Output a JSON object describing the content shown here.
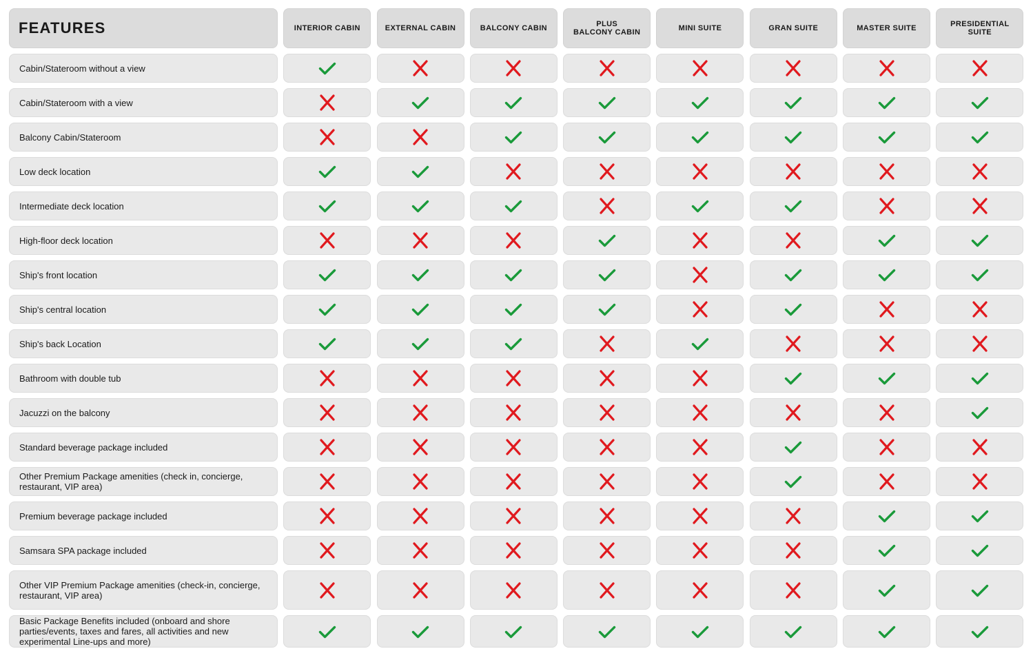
{
  "colors": {
    "check": "#1a9a3a",
    "cross": "#e0191e"
  },
  "header": {
    "features_label": "FEATURES",
    "columns": [
      "INTERIOR CABIN",
      "EXTERNAL CABIN",
      "BALCONY CABIN",
      "PLUS\nBALCONY CABIN",
      "MINI SUITE",
      "GRAN SUITE",
      "MASTER SUITE",
      "PRESIDENTIAL\nSUITE"
    ]
  },
  "rows": [
    {
      "feature": "Cabin/Stateroom without a view",
      "values": [
        true,
        false,
        false,
        false,
        false,
        false,
        false,
        false
      ]
    },
    {
      "feature": "Cabin/Stateroom with a view",
      "values": [
        false,
        true,
        true,
        true,
        true,
        true,
        true,
        true
      ]
    },
    {
      "feature": "Balcony Cabin/Stateroom",
      "values": [
        false,
        false,
        true,
        true,
        true,
        true,
        true,
        true
      ]
    },
    {
      "feature": "Low deck location",
      "values": [
        true,
        true,
        false,
        false,
        false,
        false,
        false,
        false
      ]
    },
    {
      "feature": "Intermediate deck location",
      "values": [
        true,
        true,
        true,
        false,
        true,
        true,
        false,
        false
      ]
    },
    {
      "feature": "High-floor deck location",
      "values": [
        false,
        false,
        false,
        true,
        false,
        false,
        true,
        true
      ]
    },
    {
      "feature": "Ship's front location",
      "values": [
        true,
        true,
        true,
        true,
        false,
        true,
        true,
        true
      ]
    },
    {
      "feature": "Ship's central location",
      "values": [
        true,
        true,
        true,
        true,
        false,
        true,
        false,
        false
      ]
    },
    {
      "feature": "Ship's back Location",
      "values": [
        true,
        true,
        true,
        false,
        true,
        false,
        false,
        false
      ]
    },
    {
      "feature": "Bathroom with double tub",
      "values": [
        false,
        false,
        false,
        false,
        false,
        true,
        true,
        true
      ]
    },
    {
      "feature": "Jacuzzi on the balcony",
      "values": [
        false,
        false,
        false,
        false,
        false,
        false,
        false,
        true
      ]
    },
    {
      "feature": "Standard beverage package included",
      "values": [
        false,
        false,
        false,
        false,
        false,
        true,
        false,
        false
      ]
    },
    {
      "feature": "Other Premium Package amenities (check in, concierge, restaurant, VIP area)",
      "values": [
        false,
        false,
        false,
        false,
        false,
        true,
        false,
        false
      ]
    },
    {
      "feature": "Premium beverage package included",
      "values": [
        false,
        false,
        false,
        false,
        false,
        false,
        true,
        true
      ]
    },
    {
      "feature": "Samsara SPA package included",
      "values": [
        false,
        false,
        false,
        false,
        false,
        false,
        true,
        true
      ]
    },
    {
      "feature": "Other VIP Premium Package amenities (check-in, concierge, restaurant, VIP area)",
      "values": [
        false,
        false,
        false,
        false,
        false,
        false,
        true,
        true
      ]
    },
    {
      "feature": "Basic Package Benefits included (onboard and shore parties/events, taxes and fares, all activities and new experimental Line-ups and more)",
      "values": [
        true,
        true,
        true,
        true,
        true,
        true,
        true,
        true
      ]
    }
  ]
}
